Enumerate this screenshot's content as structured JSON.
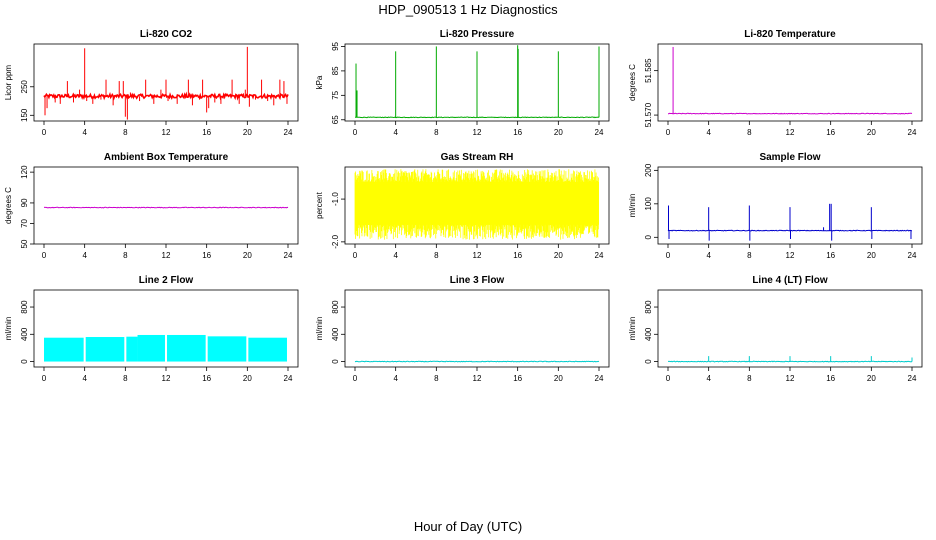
{
  "figure": {
    "title": "HDP_090513  1 Hz Diagnostics",
    "xlabel": "Hour of Day (UTC)"
  },
  "chart_data": [
    {
      "type": "line",
      "title": "Li-820 CO2",
      "ylabel": "Licor ppm",
      "xlim": [
        0,
        24
      ],
      "ylim": [
        130,
        400
      ],
      "xticks": [
        0,
        4,
        8,
        12,
        16,
        20,
        24
      ],
      "yticks": [
        150,
        250
      ],
      "color": "#ff0000",
      "baseline": 217,
      "spikes": [
        {
          "x": 0.1,
          "y": 150
        },
        {
          "x": 0.3,
          "y": 175
        },
        {
          "x": 1.1,
          "y": 195
        },
        {
          "x": 1.6,
          "y": 190
        },
        {
          "x": 2.3,
          "y": 270
        },
        {
          "x": 2.9,
          "y": 195
        },
        {
          "x": 3.5,
          "y": 240
        },
        {
          "x": 4.0,
          "y": 385
        },
        {
          "x": 4.2,
          "y": 200
        },
        {
          "x": 4.8,
          "y": 190
        },
        {
          "x": 5.6,
          "y": 205
        },
        {
          "x": 6.1,
          "y": 275
        },
        {
          "x": 6.8,
          "y": 185
        },
        {
          "x": 7.4,
          "y": 270
        },
        {
          "x": 7.8,
          "y": 270
        },
        {
          "x": 8.0,
          "y": 145
        },
        {
          "x": 8.2,
          "y": 135
        },
        {
          "x": 8.5,
          "y": 230
        },
        {
          "x": 9.4,
          "y": 200
        },
        {
          "x": 10.0,
          "y": 275
        },
        {
          "x": 10.8,
          "y": 190
        },
        {
          "x": 11.5,
          "y": 240
        },
        {
          "x": 12.0,
          "y": 275
        },
        {
          "x": 12.2,
          "y": 200
        },
        {
          "x": 13.1,
          "y": 190
        },
        {
          "x": 13.9,
          "y": 220
        },
        {
          "x": 14.2,
          "y": 275
        },
        {
          "x": 14.6,
          "y": 185
        },
        {
          "x": 15.3,
          "y": 205
        },
        {
          "x": 15.6,
          "y": 275
        },
        {
          "x": 16.0,
          "y": 160
        },
        {
          "x": 16.2,
          "y": 175
        },
        {
          "x": 16.8,
          "y": 195
        },
        {
          "x": 17.4,
          "y": 190
        },
        {
          "x": 18.0,
          "y": 220
        },
        {
          "x": 18.5,
          "y": 275
        },
        {
          "x": 19.2,
          "y": 190
        },
        {
          "x": 19.8,
          "y": 240
        },
        {
          "x": 20.0,
          "y": 390
        },
        {
          "x": 20.2,
          "y": 180
        },
        {
          "x": 20.8,
          "y": 205
        },
        {
          "x": 21.4,
          "y": 275
        },
        {
          "x": 22.0,
          "y": 200
        },
        {
          "x": 22.6,
          "y": 185
        },
        {
          "x": 23.2,
          "y": 275
        },
        {
          "x": 23.6,
          "y": 270
        },
        {
          "x": 23.9,
          "y": 190
        }
      ]
    },
    {
      "type": "line",
      "title": "Li-820 Pressure",
      "ylabel": "kPa",
      "xlim": [
        0,
        24
      ],
      "ylim": [
        64.5,
        96
      ],
      "xticks": [
        0,
        4,
        8,
        12,
        16,
        20,
        24
      ],
      "yticks": [
        65,
        75,
        85,
        95
      ],
      "color": "#00aa00",
      "baseline": 66,
      "spikes": [
        {
          "x": 0.1,
          "y": 88
        },
        {
          "x": 0.2,
          "y": 77
        },
        {
          "x": 4.0,
          "y": 93
        },
        {
          "x": 8.0,
          "y": 95
        },
        {
          "x": 12.0,
          "y": 93
        },
        {
          "x": 16.0,
          "y": 95.5
        },
        {
          "x": 16.05,
          "y": 94
        },
        {
          "x": 20.0,
          "y": 93
        },
        {
          "x": 24.0,
          "y": 95
        }
      ]
    },
    {
      "type": "line",
      "title": "Li-820 Temperature",
      "ylabel": "degrees C",
      "xlim": [
        0,
        24
      ],
      "ylim": [
        51.568,
        51.594
      ],
      "xticks": [
        0,
        4,
        8,
        12,
        16,
        20,
        24
      ],
      "yticks": [
        51.57,
        51.585
      ],
      "ytick_labels": [
        "51.570",
        "51.585"
      ],
      "color": "#cc00cc",
      "baseline": 51.5705,
      "spikes": [
        {
          "x": 0.5,
          "y": 51.593
        }
      ]
    },
    {
      "type": "line",
      "title": "Ambient Box Temperature",
      "ylabel": "degrees C",
      "xlim": [
        0,
        24
      ],
      "ylim": [
        50,
        125
      ],
      "xticks": [
        0,
        4,
        8,
        12,
        16,
        20,
        24
      ],
      "yticks": [
        50,
        70,
        90,
        120
      ],
      "color": "#cc00cc",
      "baseline": 85.5,
      "spikes": []
    },
    {
      "type": "band",
      "title": "Gas Stream RH",
      "ylabel": "percent",
      "xlim": [
        0,
        24
      ],
      "ylim": [
        -2.05,
        -0.25
      ],
      "xticks": [
        0,
        4,
        8,
        12,
        16,
        20,
        24
      ],
      "yticks": [
        -2.0,
        -1.0
      ],
      "ytick_labels": [
        "-2.0",
        "-1.0"
      ],
      "color": "#ffff00",
      "band_low": -1.6,
      "band_high": -0.6,
      "noise_low": -1.95,
      "noise_high": -0.3
    },
    {
      "type": "line",
      "title": "Sample Flow",
      "ylabel": "ml/min",
      "xlim": [
        0,
        24
      ],
      "ylim": [
        -20,
        210
      ],
      "xticks": [
        0,
        4,
        8,
        12,
        16,
        20,
        24
      ],
      "yticks": [
        0,
        100,
        200
      ],
      "color": "#0000cc",
      "baseline": 20,
      "spikes": [
        {
          "x": 0.05,
          "y": 95
        },
        {
          "x": 0.1,
          "y": -5
        },
        {
          "x": 4.0,
          "y": 90
        },
        {
          "x": 4.05,
          "y": -10
        },
        {
          "x": 8.0,
          "y": 95
        },
        {
          "x": 8.05,
          "y": -10
        },
        {
          "x": 12.0,
          "y": 90
        },
        {
          "x": 12.05,
          "y": -5
        },
        {
          "x": 15.3,
          "y": 30
        },
        {
          "x": 15.9,
          "y": 100
        },
        {
          "x": 16.05,
          "y": 100
        },
        {
          "x": 16.1,
          "y": -10
        },
        {
          "x": 20.0,
          "y": 90
        },
        {
          "x": 20.05,
          "y": -5
        },
        {
          "x": 23.9,
          "y": -5
        }
      ]
    },
    {
      "type": "band",
      "title": "Line 2 Flow",
      "ylabel": "ml/min",
      "xlim": [
        0,
        24
      ],
      "ylim": [
        -80,
        1050
      ],
      "xticks": [
        0,
        4,
        8,
        12,
        16,
        20,
        24
      ],
      "yticks": [
        0,
        400,
        800
      ],
      "color": "#00ffff",
      "segments": [
        {
          "x0": 0.0,
          "x1": 3.9,
          "top": 350
        },
        {
          "x0": 4.1,
          "x1": 7.9,
          "top": 360
        },
        {
          "x0": 8.1,
          "x1": 9.2,
          "top": 365
        },
        {
          "x0": 9.2,
          "x1": 11.9,
          "top": 390
        },
        {
          "x0": 12.1,
          "x1": 15.9,
          "top": 390
        },
        {
          "x0": 16.1,
          "x1": 19.9,
          "top": 370
        },
        {
          "x0": 20.1,
          "x1": 23.9,
          "top": 350
        }
      ]
    },
    {
      "type": "line",
      "title": "Line 3 Flow",
      "ylabel": "ml/min",
      "xlim": [
        0,
        24
      ],
      "ylim": [
        -80,
        1050
      ],
      "xticks": [
        0,
        4,
        8,
        12,
        16,
        20,
        24
      ],
      "yticks": [
        0,
        400,
        800
      ],
      "color": "#00cccc",
      "baseline": 0,
      "spikes": []
    },
    {
      "type": "line",
      "title": "Line 4 (LT) Flow",
      "ylabel": "ml/min",
      "xlim": [
        0,
        24
      ],
      "ylim": [
        -80,
        1050
      ],
      "xticks": [
        0,
        4,
        8,
        12,
        16,
        20,
        24
      ],
      "yticks": [
        0,
        400,
        800
      ],
      "color": "#00cccc",
      "baseline": 0,
      "spikes": [
        {
          "x": 4.0,
          "y": 80
        },
        {
          "x": 8.0,
          "y": 80
        },
        {
          "x": 12.0,
          "y": 80
        },
        {
          "x": 16.0,
          "y": 80
        },
        {
          "x": 20.0,
          "y": 80
        },
        {
          "x": 24.0,
          "y": 60
        }
      ]
    }
  ]
}
